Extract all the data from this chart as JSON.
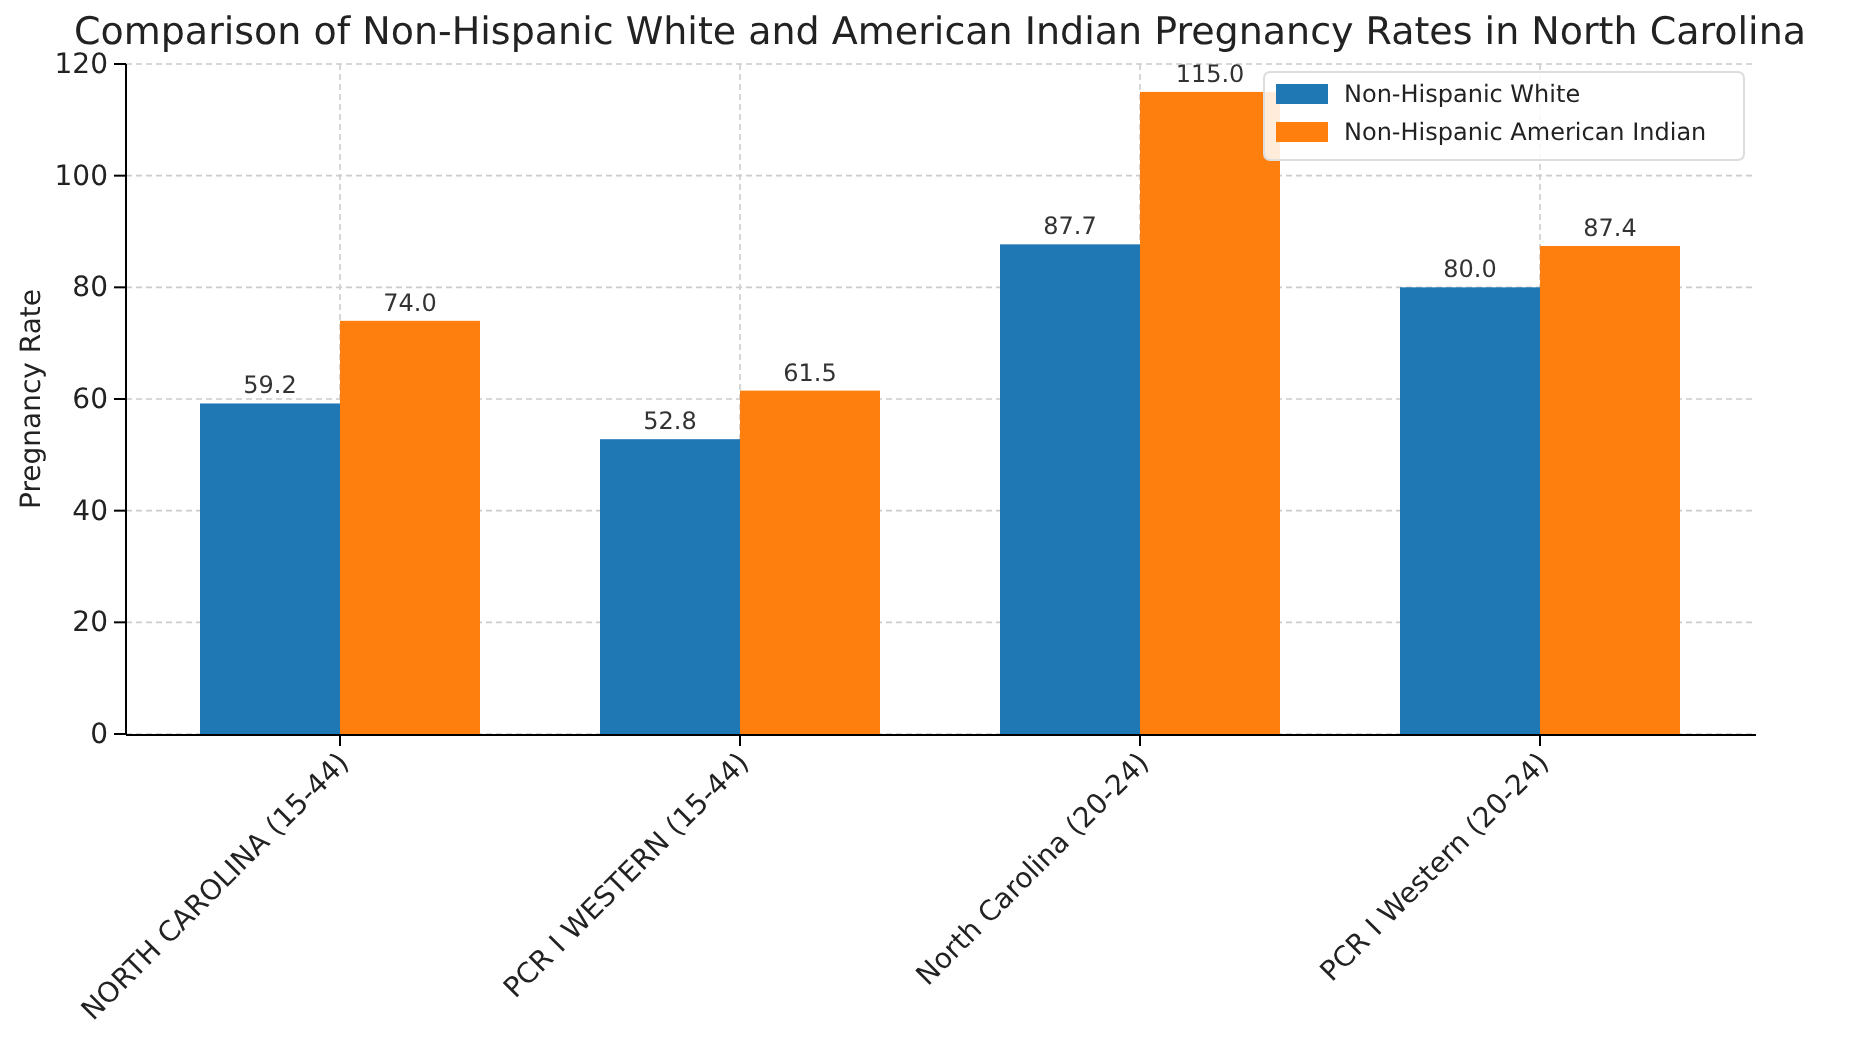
{
  "chart_data": {
    "type": "bar",
    "title": "Comparison of Non-Hispanic White and American Indian Pregnancy Rates in North Carolina",
    "ylabel": "Pregnancy Rate",
    "categories": [
      "NORTH CAROLINA (15-44)",
      "PCR I WESTERN (15-44)",
      "North Carolina (20-24)",
      "PCR I Western (20-24)"
    ],
    "series": [
      {
        "name": "Non-Hispanic White",
        "color": "#1f77b4",
        "values": [
          59.2,
          52.8,
          87.7,
          80.0
        ],
        "value_labels": [
          "59.2",
          "52.8",
          "87.7",
          "80.0"
        ]
      },
      {
        "name": "Non-Hispanic American Indian",
        "color": "#ff7f0e",
        "values": [
          74.0,
          61.5,
          115.0,
          87.4
        ],
        "value_labels": [
          "74.0",
          "61.5",
          "115.0",
          "87.4"
        ]
      }
    ],
    "ylim": [
      0,
      120
    ],
    "yticks": [
      0,
      20,
      40,
      60,
      80,
      100,
      120
    ],
    "grid": true,
    "legend": "top right"
  }
}
